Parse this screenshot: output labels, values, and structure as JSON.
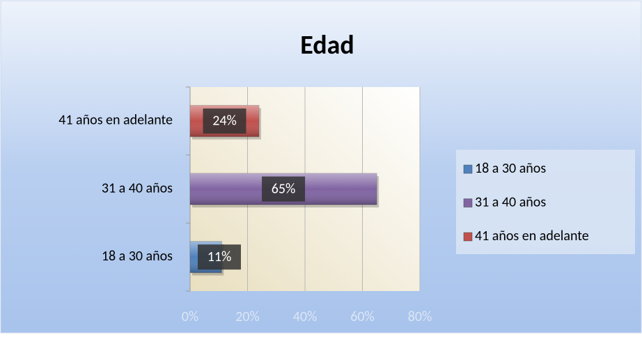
{
  "chart_data": {
    "type": "bar",
    "orientation": "horizontal",
    "title": "Edad",
    "categories": [
      "18 a 30 años",
      "31 a 40 años",
      "41 años en adelante"
    ],
    "values": [
      11,
      65,
      24
    ],
    "value_labels": [
      "11%",
      "65%",
      "24%"
    ],
    "colors": [
      "#4f81bd",
      "#8064a2",
      "#c0504d"
    ],
    "xlim": [
      0,
      80
    ],
    "xticks": [
      {
        "value": 0,
        "label": "0%"
      },
      {
        "value": 20,
        "label": "20%"
      },
      {
        "value": 40,
        "label": "40%"
      },
      {
        "value": 60,
        "label": "60%"
      },
      {
        "value": 80,
        "label": "80%"
      }
    ],
    "grid": true,
    "legend": "right"
  }
}
